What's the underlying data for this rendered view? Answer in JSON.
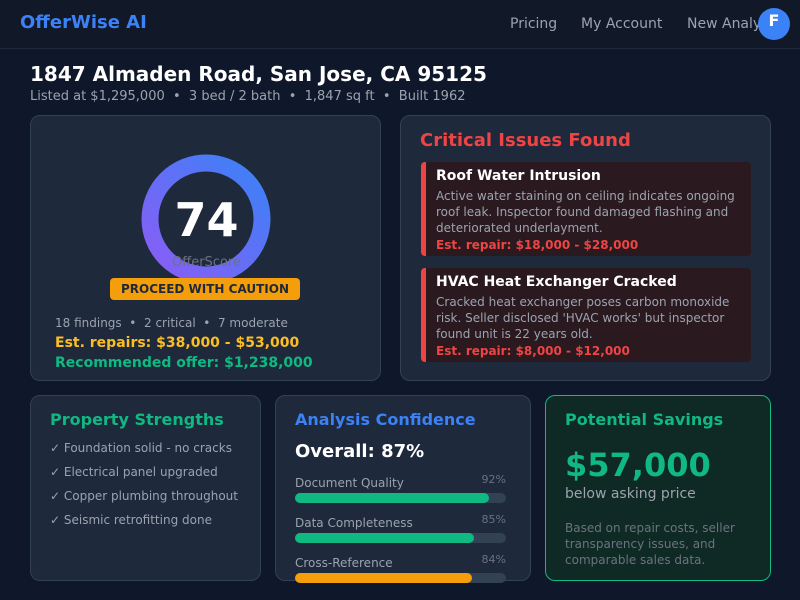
{
  "nav": {
    "brand": "OfferWise AI",
    "links": [
      "Pricing",
      "My Account",
      "New Analysis"
    ],
    "avatar": "F"
  },
  "header": {
    "title": "1847 Almaden Road, San Jose, CA 95125",
    "subtitle": "Listed at $1,295,000  •  3 bed / 2 bath  •  1,847 sq ft  •  Built 1962"
  },
  "score": {
    "value": 74,
    "label": "OfferScore",
    "badge": "PROCEED WITH CAUTION",
    "findings": "18 findings  •  2 critical  •  7 moderate",
    "repairs": "Est. repairs: $38,000 - $53,000",
    "offer": "Recommended offer: $1,238,000"
  },
  "issues": {
    "title": "Critical Issues Found",
    "items": [
      {
        "title": "Roof Water Intrusion",
        "text": "Active water staining on ceiling indicates ongoing roof leak. Inspector found damaged flashing and deteriorated underlayment.",
        "cost": "Est. repair: $18,000 - $28,000"
      },
      {
        "title": "HVAC Heat Exchanger Cracked",
        "text": "Cracked heat exchanger poses carbon monoxide risk. Seller disclosed 'HVAC works' but inspector found unit is 22 years old.",
        "cost": "Est. repair: $8,000 - $12,000"
      }
    ]
  },
  "strengths": {
    "title": "Property Strengths",
    "items": [
      "✓ Foundation solid - no cracks",
      "✓ Electrical panel upgraded",
      "✓ Copper plumbing throughout",
      "✓ Seismic retrofitting done"
    ]
  },
  "confidence": {
    "title": "Analysis Confidence",
    "overall": "Overall: 87%",
    "items": [
      {
        "name": "Document Quality",
        "value": 92,
        "value_label": "92%",
        "color": "#10b981"
      },
      {
        "name": "Data Completeness",
        "value": 85,
        "value_label": "85%",
        "color": "#10b981"
      },
      {
        "name": "Cross-Reference",
        "value": 84,
        "value_label": "84%",
        "color": "#f59e0b"
      }
    ]
  },
  "savings": {
    "title": "Potential Savings",
    "amount": "$57,000",
    "caption": "below asking price",
    "note": "Based on repair costs, seller transparency issues, and comparable sales data."
  }
}
